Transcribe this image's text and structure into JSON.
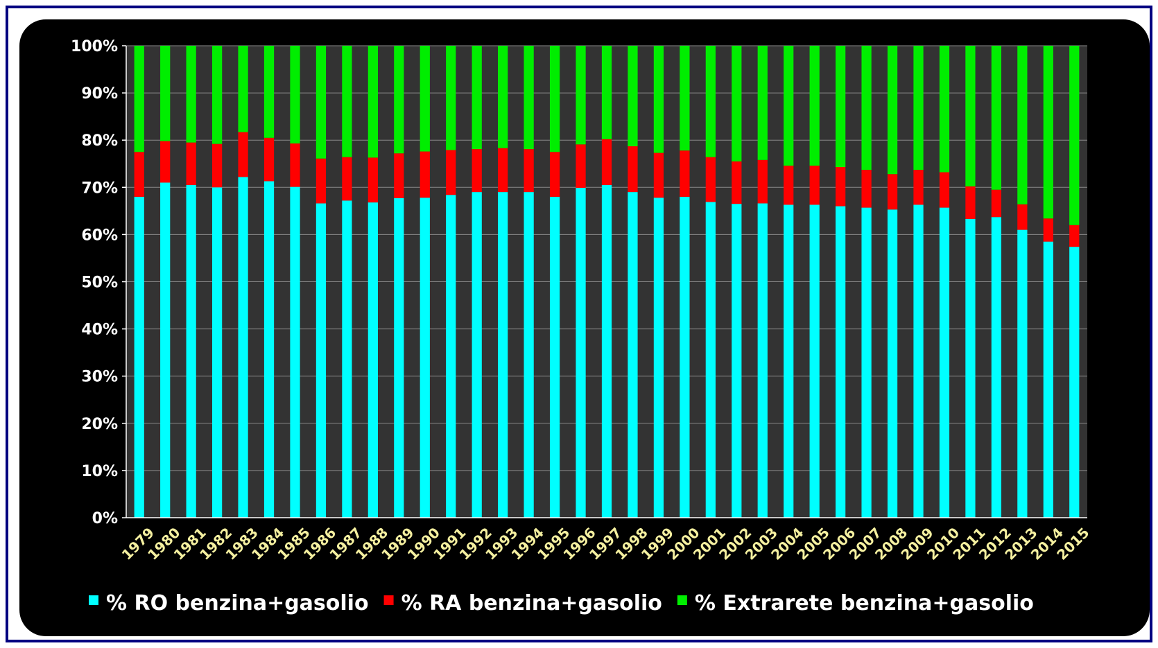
{
  "chart_data": {
    "type": "bar",
    "stacked": true,
    "categories": [
      "1979",
      "1980",
      "1981",
      "1982",
      "1983",
      "1984",
      "1985",
      "1986",
      "1987",
      "1988",
      "1989",
      "1990",
      "1991",
      "1992",
      "1993",
      "1994",
      "1995",
      "1996",
      "1997",
      "1998",
      "1999",
      "2000",
      "2001",
      "2002",
      "2003",
      "2004",
      "2005",
      "2006",
      "2007",
      "2008",
      "2009",
      "2010",
      "2011",
      "2012",
      "2013",
      "2014",
      "2015"
    ],
    "series": [
      {
        "name": "% RO benzina+gasolio",
        "color": "#00ffff",
        "values": [
          68,
          71,
          70.5,
          70,
          72.2,
          71.3,
          70.1,
          66.6,
          67.2,
          66.8,
          67.7,
          67.8,
          68.4,
          69.0,
          69.0,
          69.0,
          68.0,
          69.9,
          70.5,
          69.0,
          67.8,
          68.0,
          66.9,
          66.5,
          66.6,
          66.3,
          66.3,
          66.0,
          65.7,
          65.3,
          66.3,
          65.7,
          63.3,
          63.7,
          61.0,
          58.5,
          57.4
        ]
      },
      {
        "name": "% RA benzina+gasolio",
        "color": "#ff0000",
        "values": [
          9.5,
          8.8,
          9,
          9.2,
          9.5,
          9.2,
          9.2,
          9.5,
          9.2,
          9.5,
          9.5,
          9.8,
          9.5,
          9.1,
          9.3,
          9.1,
          9.5,
          9.2,
          9.7,
          9.7,
          9.5,
          9.8,
          9.5,
          9,
          9.2,
          8.3,
          8.3,
          8.3,
          8,
          7.5,
          7.4,
          7.5,
          6.9,
          5.8,
          5.4,
          4.9,
          4.6
        ]
      },
      {
        "name": "% Extrarete benzina+gasolio",
        "color": "#00ee00",
        "values": [
          22.5,
          20.2,
          20.5,
          20.8,
          18.3,
          19.5,
          20.7,
          23.9,
          23.6,
          23.7,
          22.8,
          22.4,
          22.1,
          21.9,
          21.7,
          21.9,
          22.5,
          20.9,
          19.8,
          21.3,
          22.7,
          22.2,
          23.6,
          24.5,
          24.2,
          25.4,
          25.4,
          25.7,
          26.3,
          27.2,
          26.3,
          26.8,
          29.8,
          30.5,
          33.6,
          36.6,
          38.0
        ]
      }
    ],
    "yticks": [
      "0%",
      "10%",
      "20%",
      "30%",
      "40%",
      "50%",
      "60%",
      "70%",
      "80%",
      "90%",
      "100%"
    ],
    "ylim": [
      0,
      100
    ],
    "legend_position": "bottom",
    "plot_background": "#333333",
    "grid": true
  }
}
